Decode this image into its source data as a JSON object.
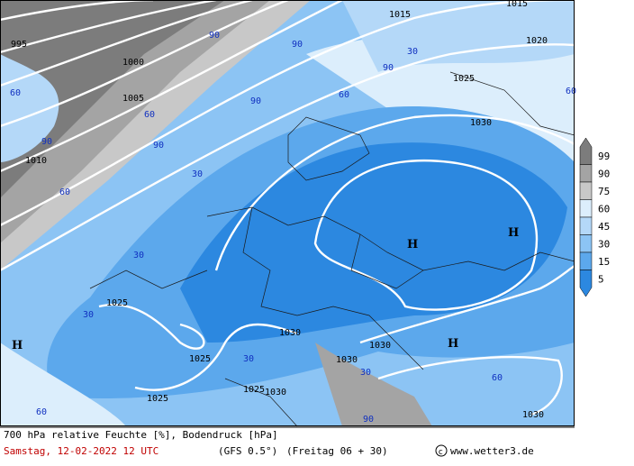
{
  "map": {
    "isobar_labels": [
      "995",
      "1000",
      "1005",
      "1010",
      "1015",
      "1015",
      "1020",
      "1025",
      "1030",
      "1025",
      "1025",
      "1025",
      "1030",
      "1030",
      "1030",
      "1025",
      "1030",
      "1030"
    ],
    "humidity_labels": [
      "90",
      "90",
      "90",
      "90",
      "90",
      "60",
      "60",
      "60",
      "60",
      "30",
      "30",
      "30",
      "60",
      "30",
      "90",
      "90",
      "30",
      "60",
      "30",
      "60"
    ],
    "highs": [
      "H",
      "H",
      "H",
      "H"
    ]
  },
  "legend": {
    "levels": [
      99,
      90,
      75,
      60,
      45,
      30,
      15,
      5
    ],
    "colors": [
      "#7c7c7c",
      "#a4a4a4",
      "#c8c8c8",
      "#dceefc",
      "#b4d8f8",
      "#8cc4f4",
      "#5ca8ec",
      "#2c88e0"
    ]
  },
  "footer": {
    "caption": "700 hPa relative Feuchte [%], Bodendruck [hPa]",
    "date": "Samstag, 12-02-2022  12 UTC",
    "model": "(GFS 0.5°)",
    "run": "(Freitag 06 + 30)",
    "site": "www.wetter3.de"
  }
}
